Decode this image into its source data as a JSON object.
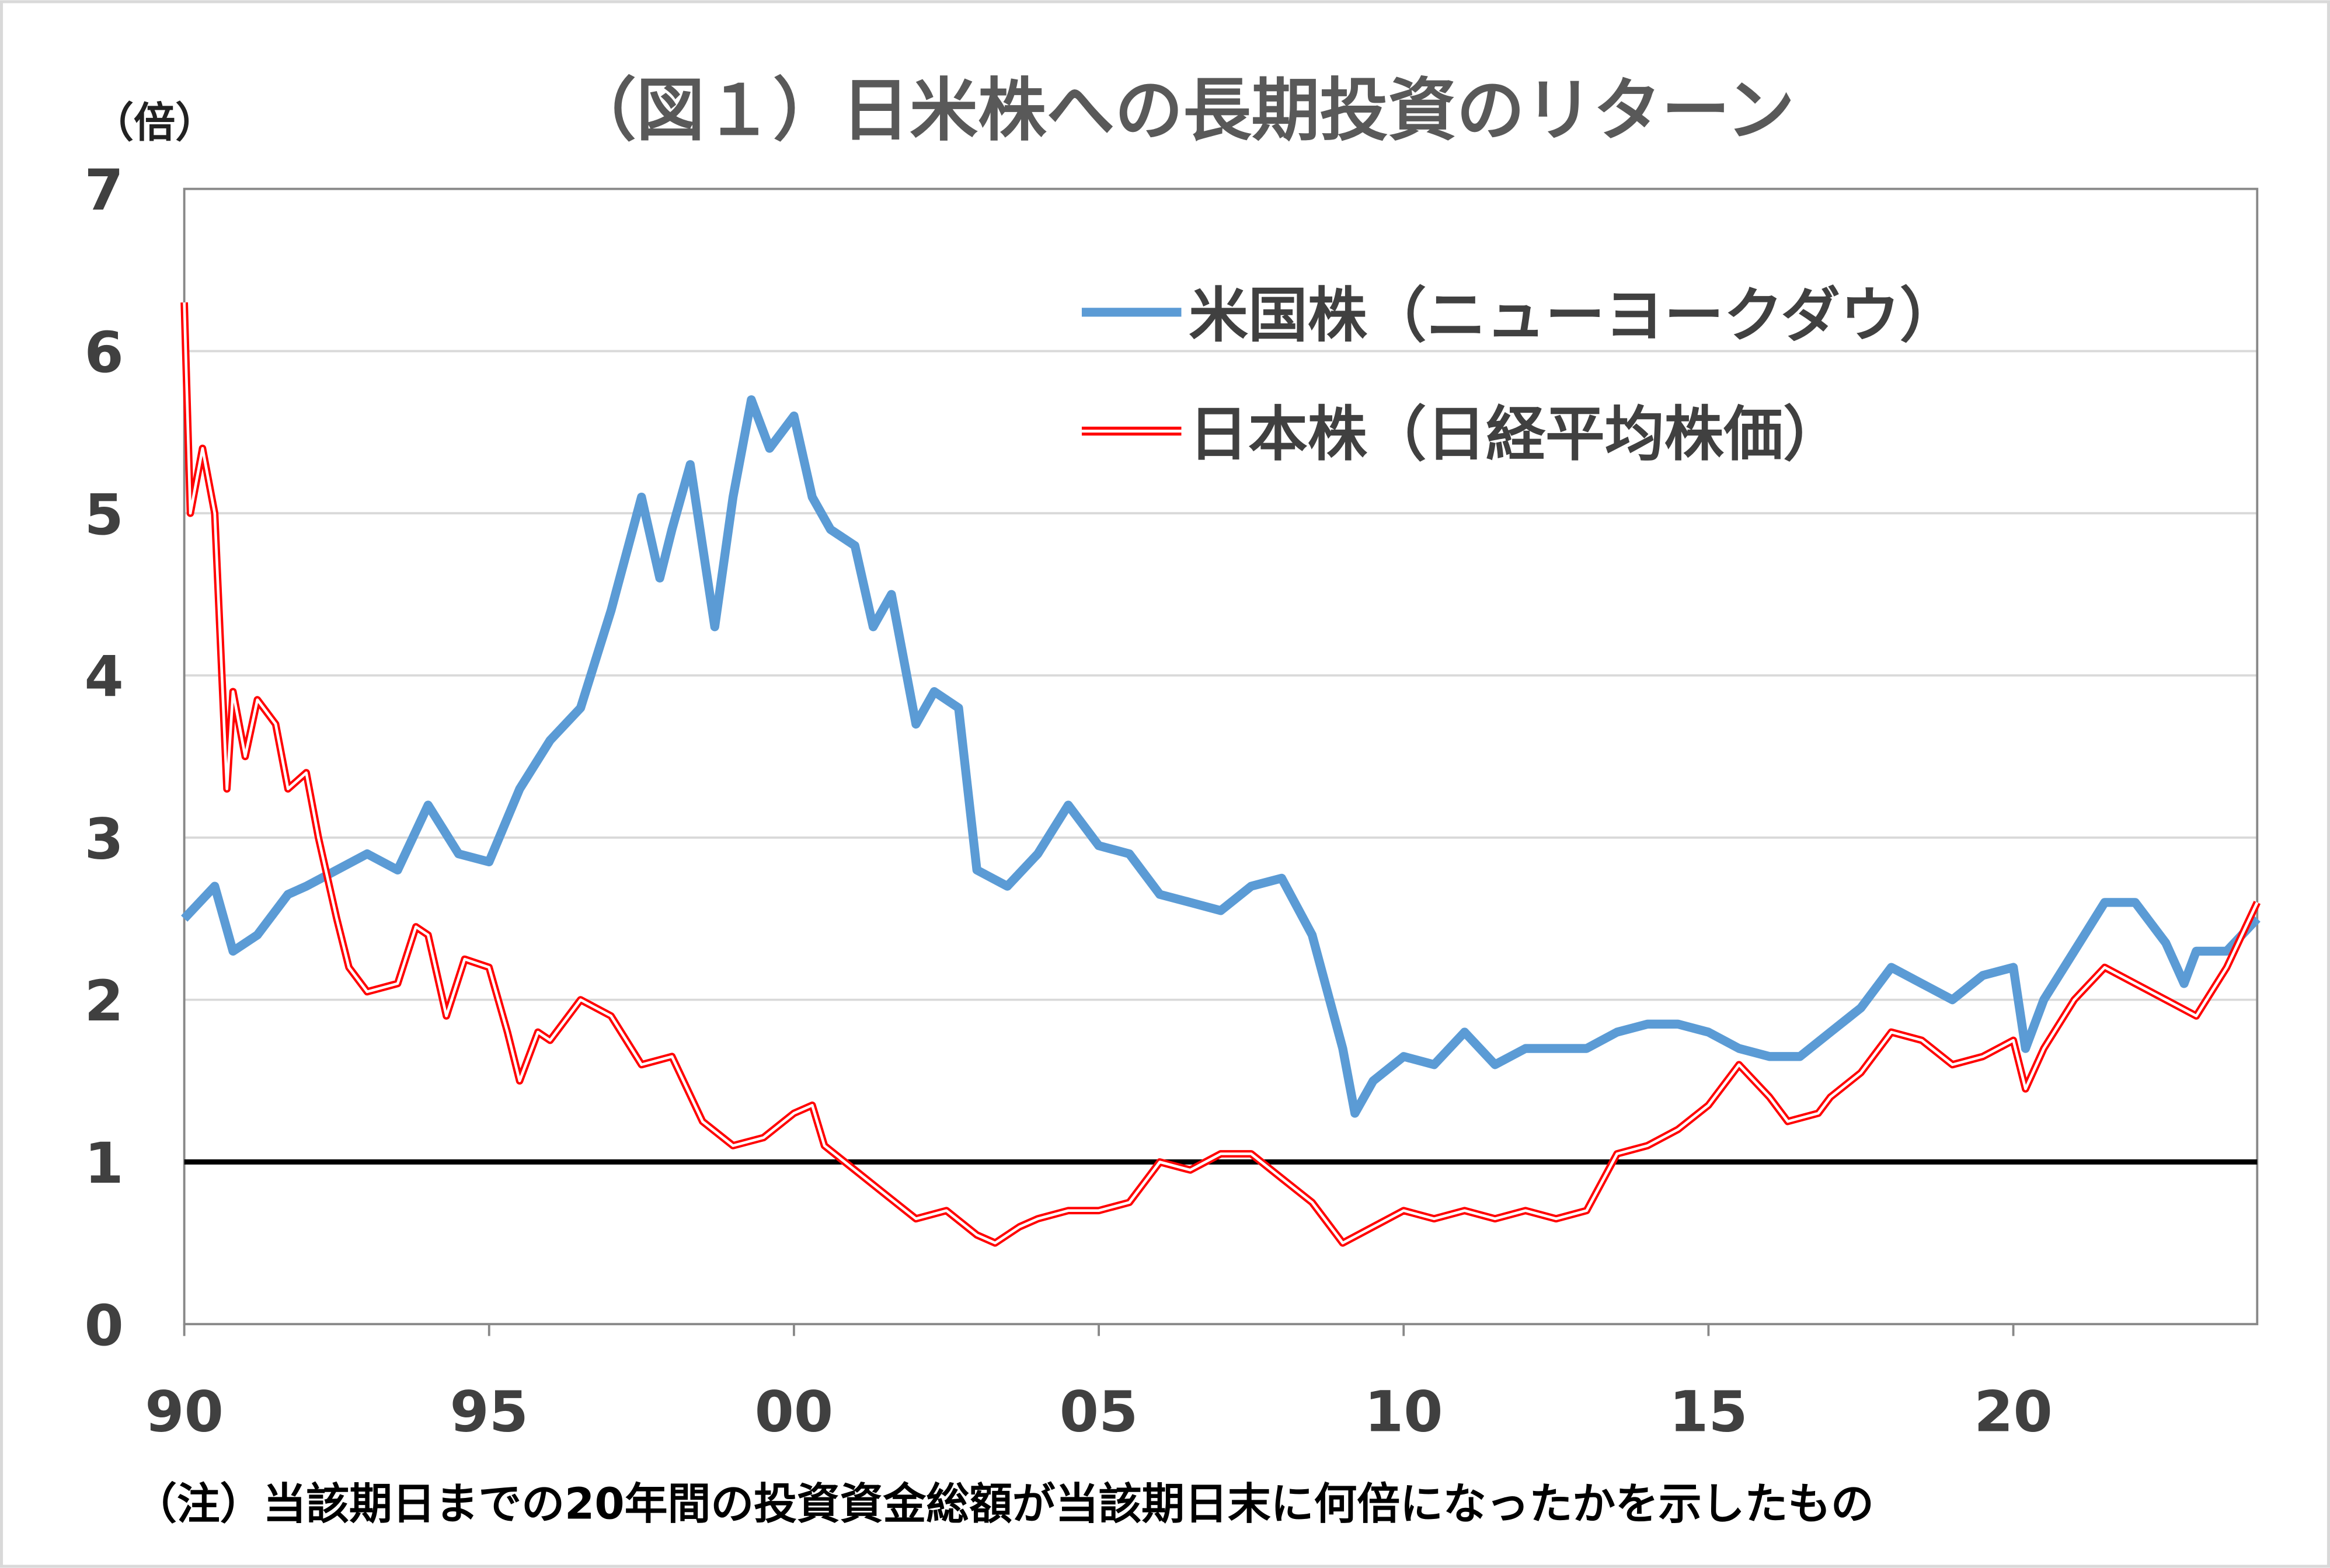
{
  "chart_data": {
    "type": "line",
    "title": "（図１）日米株への長期投資のリターン",
    "ylabel": "（倍）",
    "xlabel": "",
    "ylim": [
      0,
      7
    ],
    "xlim": [
      1990,
      2024
    ],
    "yticks": [
      "0",
      "1",
      "2",
      "3",
      "4",
      "5",
      "6",
      "7"
    ],
    "xticks": [
      {
        "x": 1990,
        "label": "90"
      },
      {
        "x": 1995,
        "label": "95"
      },
      {
        "x": 2000,
        "label": "00"
      },
      {
        "x": 2005,
        "label": "05"
      },
      {
        "x": 2010,
        "label": "10"
      },
      {
        "x": 2015,
        "label": "15"
      },
      {
        "x": 2020,
        "label": "20"
      }
    ],
    "grid": true,
    "legend_position": "top-right",
    "reference_line": 1,
    "note": "（注）当該期日までの20年間の投資資金総額が当該期日末に何倍になったかを示したもの",
    "series": [
      {
        "name": "米国株（ニューヨークダウ）",
        "color": "#5B9BD5",
        "x": [
          1990,
          1990.5,
          1990.8,
          1991.2,
          1991.7,
          1992,
          1992.5,
          1993,
          1993.5,
          1994,
          1994.5,
          1995,
          1995.5,
          1996,
          1996.5,
          1997,
          1997.5,
          1997.8,
          1998,
          1998.3,
          1998.7,
          1999,
          1999.3,
          1999.6,
          2000,
          2000.3,
          2000.6,
          2001,
          2001.3,
          2001.6,
          2002,
          2002.3,
          2002.7,
          2003,
          2003.5,
          2004,
          2004.5,
          2005,
          2005.5,
          2006,
          2006.5,
          2007,
          2007.5,
          2008,
          2008.5,
          2009,
          2009.2,
          2009.5,
          2010,
          2010.5,
          2011,
          2011.5,
          2012,
          2012.5,
          2013,
          2013.5,
          2014,
          2014.5,
          2015,
          2015.5,
          2016,
          2016.5,
          2017,
          2017.5,
          2018,
          2018.5,
          2019,
          2019.5,
          2020,
          2020.2,
          2020.5,
          2021,
          2021.5,
          2022,
          2022.5,
          2022.8,
          2023,
          2023.5,
          2024
        ],
        "y": [
          2.5,
          2.7,
          2.3,
          2.4,
          2.65,
          2.7,
          2.8,
          2.9,
          2.8,
          3.2,
          2.9,
          2.85,
          3.3,
          3.6,
          3.8,
          4.4,
          5.1,
          4.6,
          4.9,
          5.3,
          4.3,
          5.1,
          5.7,
          5.4,
          5.6,
          5.1,
          4.9,
          4.8,
          4.3,
          4.5,
          3.7,
          3.9,
          3.8,
          2.8,
          2.7,
          2.9,
          3.2,
          2.95,
          2.9,
          2.65,
          2.6,
          2.55,
          2.7,
          2.75,
          2.4,
          1.7,
          1.3,
          1.5,
          1.65,
          1.6,
          1.8,
          1.6,
          1.7,
          1.7,
          1.7,
          1.8,
          1.85,
          1.85,
          1.8,
          1.7,
          1.65,
          1.65,
          1.8,
          1.95,
          2.2,
          2.1,
          2.0,
          2.15,
          2.2,
          1.7,
          2.0,
          2.3,
          2.6,
          2.6,
          2.35,
          2.1,
          2.3,
          2.3,
          2.5
        ]
      },
      {
        "name": "日本株（日経平均株価）",
        "color": "#FF0000",
        "x": [
          1990,
          1990.1,
          1990.3,
          1990.5,
          1990.7,
          1990.8,
          1991,
          1991.2,
          1991.5,
          1991.7,
          1992,
          1992.2,
          1992.5,
          1992.7,
          1993,
          1993.5,
          1993.8,
          1994,
          1994.3,
          1994.6,
          1995,
          1995.3,
          1995.5,
          1995.8,
          1996,
          1996.5,
          1997,
          1997.5,
          1998,
          1998.5,
          1999,
          1999.5,
          2000,
          2000.3,
          2000.5,
          2001,
          2001.5,
          2002,
          2002.5,
          2003,
          2003.3,
          2003.7,
          2004,
          2004.5,
          2005,
          2005.5,
          2006,
          2006.5,
          2007,
          2007.5,
          2008,
          2008.5,
          2009,
          2009.5,
          2010,
          2010.5,
          2011,
          2011.5,
          2012,
          2012.5,
          2013,
          2013.5,
          2014,
          2014.5,
          2015,
          2015.5,
          2016,
          2016.3,
          2016.8,
          2017,
          2017.5,
          2018,
          2018.5,
          2019,
          2019.5,
          2020,
          2020.2,
          2020.5,
          2021,
          2021.5,
          2022,
          2022.5,
          2023,
          2023.5,
          2024
        ],
        "y": [
          6.3,
          5.0,
          5.4,
          5.0,
          3.3,
          3.9,
          3.5,
          3.85,
          3.7,
          3.3,
          3.4,
          3.0,
          2.5,
          2.2,
          2.05,
          2.1,
          2.45,
          2.4,
          1.9,
          2.25,
          2.2,
          1.8,
          1.5,
          1.8,
          1.75,
          2.0,
          1.9,
          1.6,
          1.65,
          1.25,
          1.1,
          1.15,
          1.3,
          1.35,
          1.1,
          0.95,
          0.8,
          0.65,
          0.7,
          0.55,
          0.5,
          0.6,
          0.65,
          0.7,
          0.7,
          0.75,
          1.0,
          0.95,
          1.05,
          1.05,
          0.9,
          0.75,
          0.5,
          0.6,
          0.7,
          0.65,
          0.7,
          0.65,
          0.7,
          0.65,
          0.7,
          1.05,
          1.1,
          1.2,
          1.35,
          1.6,
          1.4,
          1.25,
          1.3,
          1.4,
          1.55,
          1.8,
          1.75,
          1.6,
          1.65,
          1.75,
          1.45,
          1.7,
          2.0,
          2.2,
          2.1,
          2.0,
          1.9,
          2.2,
          2.6
        ]
      }
    ]
  }
}
